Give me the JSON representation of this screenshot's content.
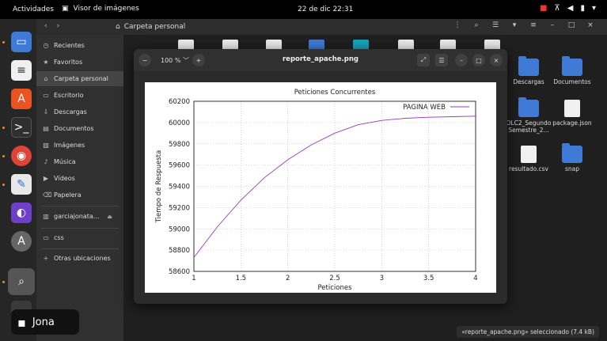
{
  "topbar": {
    "activities": "Actividades",
    "app_name": "Visor de imágenes",
    "clock": "22 de dic  22:31"
  },
  "files": {
    "path_label": "Carpeta personal",
    "sidebar": [
      {
        "label": "Recientes",
        "icon": "clock-icon"
      },
      {
        "label": "Favoritos",
        "icon": "star-icon"
      },
      {
        "label": "Carpeta personal",
        "icon": "home-icon",
        "active": true
      },
      {
        "label": "Escritorio",
        "icon": "desktop-icon"
      },
      {
        "label": "Descargas",
        "icon": "download-icon"
      },
      {
        "label": "Documentos",
        "icon": "document-icon"
      },
      {
        "label": "Imágenes",
        "icon": "image-icon"
      },
      {
        "label": "Música",
        "icon": "music-icon"
      },
      {
        "label": "Vídeos",
        "icon": "video-icon"
      },
      {
        "label": "Papelera",
        "icon": "trash-icon"
      },
      {
        "label": "garciajonata...",
        "icon": "drive-icon"
      },
      {
        "label": "css",
        "icon": "folder-icon"
      },
      {
        "label": "Otras ubicaciones",
        "icon": "plus-icon"
      }
    ],
    "grid_items": [
      {
        "label": "Descargas",
        "kind": "folder"
      },
      {
        "label": "Documentos",
        "kind": "folder"
      },
      {
        "label": "OLC2_SegundoSemestre_2...",
        "kind": "folder"
      },
      {
        "label": "package.json",
        "kind": "json"
      },
      {
        "label": "resultado.csv",
        "kind": "doc"
      },
      {
        "label": "snap",
        "kind": "folder"
      }
    ],
    "status": "«reporte_apache.png» seleccionado  (7.4 kB)"
  },
  "viewer": {
    "title": "reporte_apache.png",
    "zoom": "100 %"
  },
  "toast": {
    "name": "Jona"
  },
  "chart_data": {
    "type": "line",
    "title": "Peticiones Concurrentes",
    "xlabel": "Peticiones",
    "ylabel": "Tiempo de Respuesta",
    "xlim": [
      1,
      4
    ],
    "ylim": [
      58600,
      60200
    ],
    "x_ticks": [
      "1",
      "1.5",
      "2",
      "2.5",
      "3",
      "3.5",
      "4"
    ],
    "y_ticks": [
      "58600",
      "58800",
      "59000",
      "59200",
      "59400",
      "59600",
      "59800",
      "60000",
      "60200"
    ],
    "grid": true,
    "legend_position": "top-right",
    "series": [
      {
        "name": "PAGINA WEB",
        "color": "#9a3ac0",
        "x": [
          1,
          1.25,
          1.5,
          1.75,
          2,
          2.25,
          2.5,
          2.75,
          3,
          3.25,
          3.5,
          3.75,
          4
        ],
        "y": [
          58730,
          59020,
          59270,
          59480,
          59650,
          59790,
          59900,
          59980,
          60020,
          60040,
          60050,
          60055,
          60060
        ]
      }
    ]
  }
}
